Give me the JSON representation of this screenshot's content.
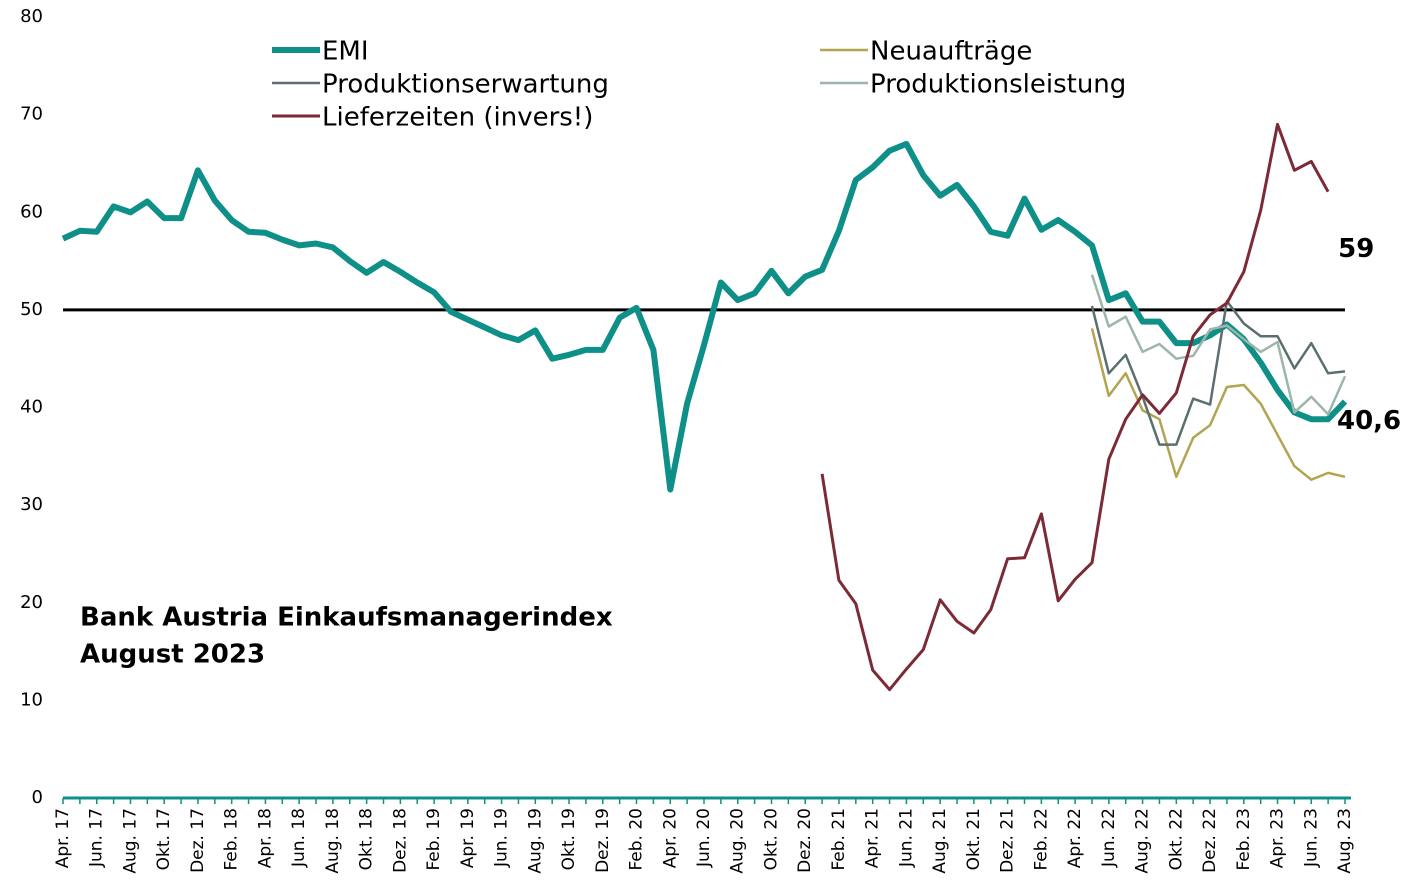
{
  "chart_data": {
    "type": "line",
    "title": "Bank Austria Einkaufsmanagerindex",
    "subtitle": "August 2023",
    "categories": [
      "Apr. 17",
      null,
      "Jun. 17",
      null,
      "Aug. 17",
      null,
      "Okt. 17",
      null,
      "Dez. 17",
      null,
      "Feb. 18",
      null,
      "Apr. 18",
      null,
      "Jun. 18",
      null,
      "Aug. 18",
      null,
      "Okt. 18",
      null,
      "Dez. 18",
      null,
      "Feb. 19",
      null,
      "Apr. 19",
      null,
      "Jun. 19",
      null,
      "Aug. 19",
      null,
      "Okt. 19",
      null,
      "Dez. 19",
      null,
      "Feb. 20",
      null,
      "Apr. 20",
      null,
      "Jun. 20",
      null,
      "Aug. 20",
      null,
      "Okt. 20",
      null,
      "Dez. 20",
      null,
      "Feb. 21",
      null,
      "Apr. 21",
      null,
      "Jun. 21",
      null,
      "Aug. 21",
      null,
      "Okt. 21",
      null,
      "Dez. 21",
      null,
      "Feb. 22",
      null,
      "Apr. 22",
      null,
      "Jun. 22",
      null,
      "Aug. 22",
      null,
      "Okt. 22",
      null,
      "Dez. 22",
      null,
      "Feb. 23",
      null,
      "Apr. 23",
      null,
      "Jun. 23",
      null,
      "Aug. 23"
    ],
    "series": [
      {
        "name": "EMI",
        "color": "#0e9089",
        "width": 6,
        "values": [
          57.3,
          58.1,
          58.0,
          60.6,
          60.0,
          61.1,
          59.4,
          59.4,
          64.3,
          61.2,
          59.2,
          58.0,
          57.9,
          57.2,
          56.6,
          56.8,
          56.4,
          55.0,
          53.8,
          54.9,
          53.9,
          52.8,
          51.8,
          49.8,
          49.0,
          48.2,
          47.4,
          46.9,
          47.9,
          45.0,
          45.4,
          45.9,
          45.9,
          49.2,
          50.2,
          45.9,
          31.6,
          40.4,
          46.4,
          52.8,
          51.0,
          51.7,
          54.0,
          51.7,
          53.4,
          54.1,
          58.1,
          63.3,
          64.6,
          66.3,
          67.0,
          63.8,
          61.7,
          62.8,
          60.6,
          58.0,
          57.6,
          61.4,
          58.2,
          59.2,
          58.0,
          56.6,
          51.0,
          51.7,
          48.8,
          48.8,
          46.6,
          46.6,
          47.4,
          48.5,
          47.0,
          44.6,
          41.8,
          39.5,
          38.8,
          38.8,
          40.6
        ]
      },
      {
        "name": "Neuaufträge",
        "color": "#b2a451",
        "width": 2.5,
        "values": [
          null,
          null,
          null,
          null,
          null,
          null,
          null,
          null,
          null,
          null,
          null,
          null,
          null,
          null,
          null,
          null,
          null,
          null,
          null,
          null,
          null,
          null,
          null,
          null,
          null,
          null,
          null,
          null,
          null,
          null,
          null,
          null,
          null,
          null,
          null,
          null,
          null,
          null,
          null,
          null,
          null,
          null,
          null,
          null,
          null,
          null,
          null,
          null,
          null,
          null,
          null,
          null,
          null,
          null,
          null,
          null,
          null,
          null,
          null,
          null,
          null,
          48.1,
          41.2,
          43.5,
          39.7,
          38.8,
          32.9,
          36.9,
          38.2,
          42.1,
          42.3,
          40.4,
          37.2,
          34.0,
          32.6,
          33.3,
          32.9
        ]
      },
      {
        "name": "Produktionserwartung",
        "color": "#5b6f71",
        "width": 2.5,
        "values": [
          null,
          null,
          null,
          null,
          null,
          null,
          null,
          null,
          null,
          null,
          null,
          null,
          null,
          null,
          null,
          null,
          null,
          null,
          null,
          null,
          null,
          null,
          null,
          null,
          null,
          null,
          null,
          null,
          null,
          null,
          null,
          null,
          null,
          null,
          null,
          null,
          null,
          null,
          null,
          null,
          null,
          null,
          null,
          null,
          null,
          null,
          null,
          null,
          null,
          null,
          null,
          null,
          null,
          null,
          null,
          null,
          null,
          null,
          null,
          null,
          null,
          50.4,
          43.5,
          45.4,
          41.1,
          36.2,
          36.2,
          40.9,
          40.3,
          50.9,
          48.6,
          47.3,
          47.3,
          44.0,
          46.6,
          43.5,
          43.7
        ]
      },
      {
        "name": "Produktionsleistung",
        "color": "#9db6aa",
        "width": 2.5,
        "values": [
          null,
          null,
          null,
          null,
          null,
          null,
          null,
          null,
          null,
          null,
          null,
          null,
          null,
          null,
          null,
          null,
          null,
          null,
          null,
          null,
          null,
          null,
          null,
          null,
          null,
          null,
          null,
          null,
          null,
          null,
          null,
          null,
          null,
          null,
          null,
          null,
          null,
          null,
          null,
          null,
          null,
          null,
          null,
          null,
          null,
          null,
          null,
          null,
          null,
          null,
          null,
          null,
          null,
          null,
          null,
          null,
          null,
          null,
          null,
          null,
          null,
          53.6,
          48.3,
          49.3,
          45.7,
          46.5,
          45.0,
          45.3,
          48.0,
          48.4,
          47.0,
          45.7,
          46.7,
          39.5,
          41.1,
          39.3,
          43.2
        ]
      },
      {
        "name": "Lieferzeiten (invers!)",
        "color": "#7b2a36",
        "width": 3,
        "values": [
          null,
          null,
          null,
          null,
          null,
          null,
          null,
          null,
          null,
          null,
          null,
          null,
          null,
          null,
          null,
          null,
          null,
          null,
          null,
          null,
          null,
          null,
          null,
          null,
          null,
          null,
          null,
          null,
          null,
          null,
          null,
          null,
          null,
          null,
          null,
          null,
          null,
          null,
          null,
          null,
          null,
          null,
          null,
          null,
          null,
          33.2,
          22.3,
          19.9,
          13.1,
          11.1,
          13.2,
          15.2,
          20.3,
          18.1,
          16.9,
          19.3,
          24.5,
          24.6,
          29.1,
          20.2,
          22.4,
          24.1,
          34.7,
          38.8,
          41.3,
          39.4,
          41.5,
          47.3,
          49.5,
          50.7,
          53.9,
          60.2,
          69.0,
          64.3,
          65.2,
          62.1,
          null
        ]
      }
    ],
    "annotations": [
      {
        "text": "40,6",
        "color": "#0e9089"
      },
      {
        "text": "59",
        "color": "#c00000"
      }
    ],
    "refline": 50,
    "ylim": [
      0,
      80
    ],
    "yticks": [
      0,
      10,
      20,
      30,
      40,
      50,
      60,
      70,
      80
    ],
    "grid": false,
    "axis_color": "#0e9089"
  }
}
